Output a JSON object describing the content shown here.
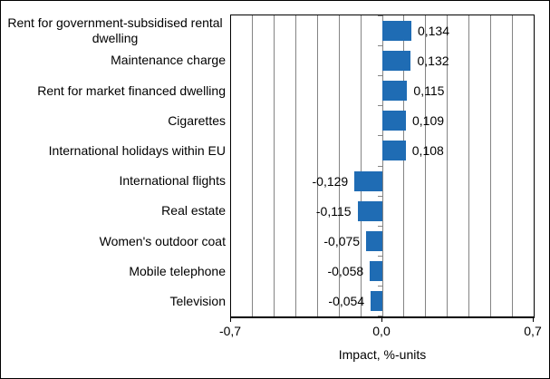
{
  "chart_data": {
    "type": "bar",
    "orientation": "horizontal",
    "title": "",
    "categories": [
      "Rent for government-subsidised rental dwelling",
      "Maintenance charge",
      "Rent for market financed dwelling",
      "Cigarettes",
      "International holidays within EU",
      "International flights",
      "Real estate",
      "Women's outdoor coat",
      "Mobile telephone",
      "Television"
    ],
    "values": [
      0.134,
      0.132,
      0.115,
      0.109,
      0.108,
      -0.129,
      -0.115,
      -0.075,
      -0.058,
      -0.054
    ],
    "value_labels": [
      "0,134",
      "0,132",
      "0,115",
      "0,109",
      "0,108",
      "-0,129",
      "-0,115",
      "-0,075",
      "-0,058",
      "-0,054"
    ],
    "xlabel": "Impact, %-units",
    "xlim": [
      -0.7,
      0.7
    ],
    "gridline_step": 0.1,
    "grid": true,
    "legend": false,
    "decimal_separator": ",",
    "x_ticks": [
      {
        "value": -0.7,
        "label": "-0,7"
      },
      {
        "value": 0.0,
        "label": "0,0"
      },
      {
        "value": 0.7,
        "label": "0,7"
      }
    ],
    "bar_color": "#1f6cb4",
    "gridline_color": "#848484"
  }
}
